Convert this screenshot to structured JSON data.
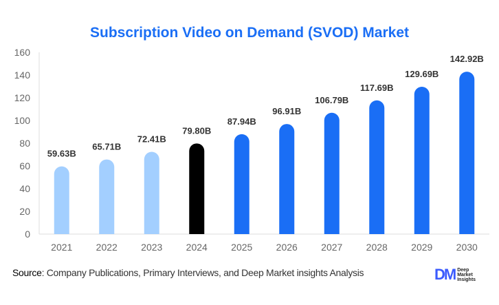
{
  "chart_data": {
    "type": "bar",
    "title": "Subscription Video on Demand (SVOD) Market",
    "categories": [
      "2021",
      "2022",
      "2023",
      "2024",
      "2025",
      "2026",
      "2027",
      "2028",
      "2029",
      "2030"
    ],
    "values": [
      59.63,
      65.71,
      72.41,
      79.8,
      87.94,
      96.91,
      106.79,
      117.69,
      129.69,
      142.92
    ],
    "labels": [
      "59.63B",
      "65.71B",
      "72.41B",
      "79.80B",
      "87.94B",
      "96.91B",
      "106.79B",
      "117.69B",
      "129.69B",
      "142.92B"
    ],
    "ylim": [
      0,
      160
    ],
    "yticks": [
      0,
      20,
      40,
      60,
      80,
      100,
      120,
      140,
      160
    ],
    "grid": false,
    "colors": {
      "historical": "#a3cfff",
      "current": "#000000",
      "forecast": "#1a6ef5",
      "title": "#1a6ef5"
    },
    "bar_groups": [
      "historical",
      "historical",
      "historical",
      "current",
      "forecast",
      "forecast",
      "forecast",
      "forecast",
      "forecast",
      "forecast"
    ]
  },
  "footer": {
    "source_label": "Source",
    "source_text": ": Company Publications, Primary Interviews, and Deep Market insights Analysis"
  },
  "logo": {
    "mark": "DM",
    "text": "Deep Market Insights"
  }
}
